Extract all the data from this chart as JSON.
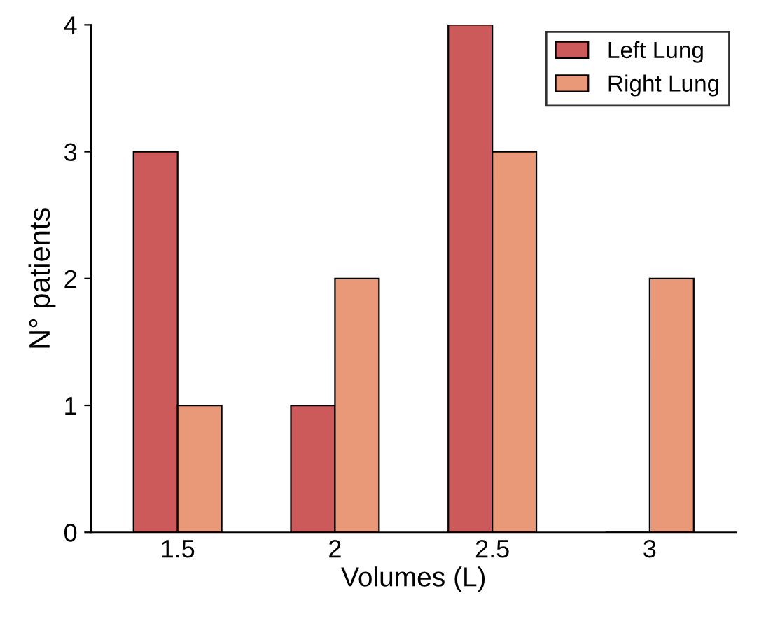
{
  "chart_data": {
    "type": "bar",
    "xlabel": "Volumes (L)",
    "ylabel": "N° patients",
    "categories": [
      "1.5",
      "2",
      "2.5",
      "3"
    ],
    "series": [
      {
        "name": "Left Lung",
        "color": "#cc5a5a",
        "values": [
          3,
          1,
          4,
          0
        ]
      },
      {
        "name": "Right Lung",
        "color": "#e99878",
        "values": [
          1,
          2,
          3,
          2
        ]
      }
    ],
    "ylim": [
      0,
      4
    ],
    "yticks": [
      0,
      1,
      2,
      3,
      4
    ],
    "grid": false,
    "legend": "top right"
  }
}
